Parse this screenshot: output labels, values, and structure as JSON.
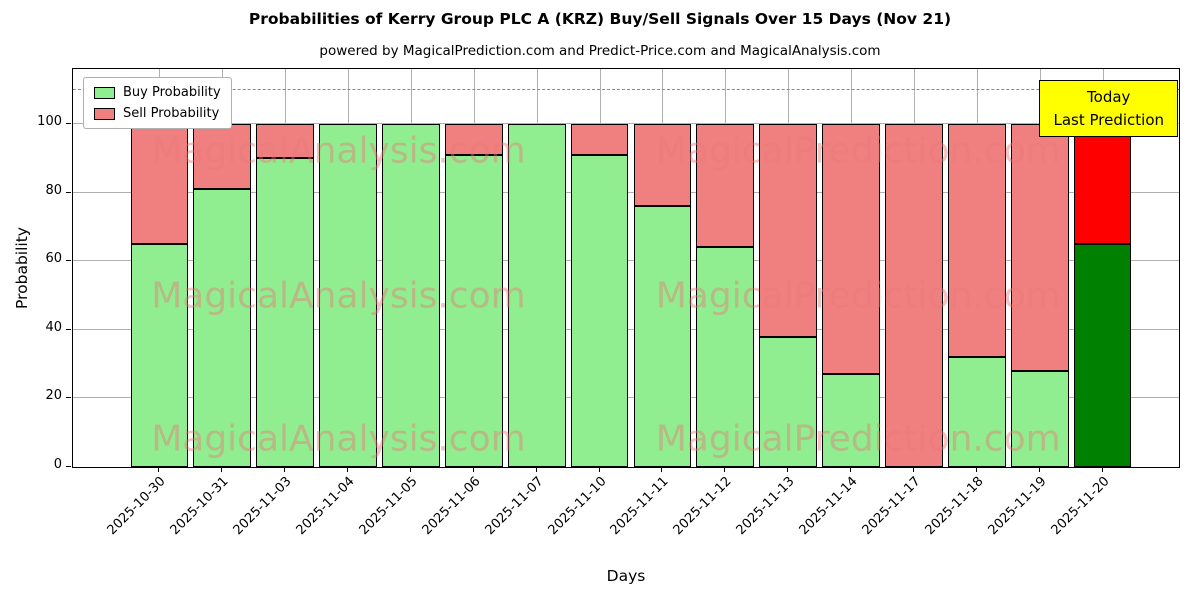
{
  "chart_data": {
    "type": "bar",
    "stacked": true,
    "title": "Probabilities of Kerry Group PLC A (KRZ) Buy/Sell Signals Over 15 Days (Nov 21)",
    "subtitle": "powered by MagicalPrediction.com and Predict-Price.com and MagicalAnalysis.com",
    "xlabel": "Days",
    "ylabel": "Probability",
    "categories": [
      "2025-10-30",
      "2025-10-31",
      "2025-11-03",
      "2025-11-04",
      "2025-11-05",
      "2025-11-06",
      "2025-11-07",
      "2025-11-10",
      "2025-11-11",
      "2025-11-12",
      "2025-11-13",
      "2025-11-14",
      "2025-11-17",
      "2025-11-18",
      "2025-11-19",
      "2025-11-20"
    ],
    "series": [
      {
        "name": "Buy Probability",
        "color": "#90ee90",
        "values": [
          65,
          81,
          90,
          100,
          100,
          91,
          100,
          91,
          76,
          64,
          38,
          27,
          0,
          32,
          28,
          65
        ]
      },
      {
        "name": "Sell Probability",
        "color": "#f08080",
        "values": [
          35,
          19,
          10,
          0,
          0,
          9,
          0,
          9,
          24,
          36,
          62,
          73,
          100,
          68,
          72,
          35
        ]
      }
    ],
    "highlight": {
      "index": 15,
      "buy_color": "#008000",
      "sell_color": "#ff0000"
    },
    "ylim": [
      0,
      116
    ],
    "yticks": [
      0,
      20,
      40,
      60,
      80,
      100
    ],
    "dashed_line_y": 110,
    "grid": true,
    "legend_position": "upper-left",
    "annotation": {
      "line1": "Today",
      "line2": "Last Prediction",
      "bg_color": "#ffff00"
    },
    "watermarks": [
      "MagicalAnalysis.com",
      "MagicalPrediction.com"
    ]
  }
}
